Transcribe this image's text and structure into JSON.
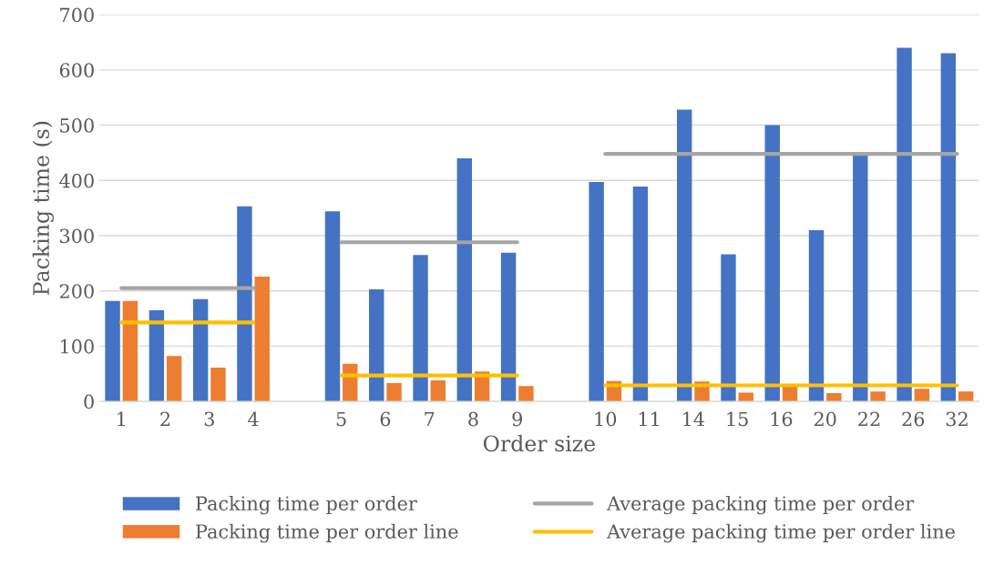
{
  "chart_data": {
    "type": "bar",
    "xlabel": "Order size",
    "ylabel": "Packing time (s)",
    "categories": [
      "1",
      "2",
      "3",
      "4",
      null,
      "5",
      "6",
      "7",
      "8",
      "9",
      null,
      "10",
      "11",
      "14",
      "15",
      "16",
      "20",
      "22",
      "26",
      "32"
    ],
    "series": [
      {
        "name": "Packing time per order",
        "color": "#4472c4",
        "values": [
          182,
          165,
          185,
          353,
          null,
          344,
          203,
          265,
          440,
          269,
          null,
          397,
          389,
          528,
          266,
          500,
          310,
          448,
          640,
          630
        ]
      },
      {
        "name": "Packing time per order line",
        "color": "#ed7d31",
        "values": [
          182,
          82,
          61,
          226,
          null,
          68,
          33,
          38,
          54,
          28,
          null,
          37,
          null,
          36,
          16,
          30,
          15,
          18,
          23,
          18
        ]
      },
      {
        "name": "Average packing time per order",
        "type": "line",
        "color": "#a5a5a5",
        "values": [
          205,
          205,
          205,
          205,
          null,
          288,
          288,
          288,
          288,
          288,
          null,
          448,
          448,
          448,
          448,
          448,
          448,
          448,
          448,
          448
        ]
      },
      {
        "name": "Average packing time per order line",
        "type": "line",
        "color": "#ffc000",
        "values": [
          143,
          143,
          143,
          143,
          null,
          47,
          47,
          47,
          47,
          47,
          null,
          29,
          29,
          29,
          29,
          29,
          29,
          29,
          29,
          29
        ]
      }
    ],
    "ylim": [
      0,
      700
    ],
    "yticks": [
      0,
      100,
      200,
      300,
      400,
      500,
      600,
      700
    ],
    "grid": "y",
    "legend": "bottom"
  }
}
